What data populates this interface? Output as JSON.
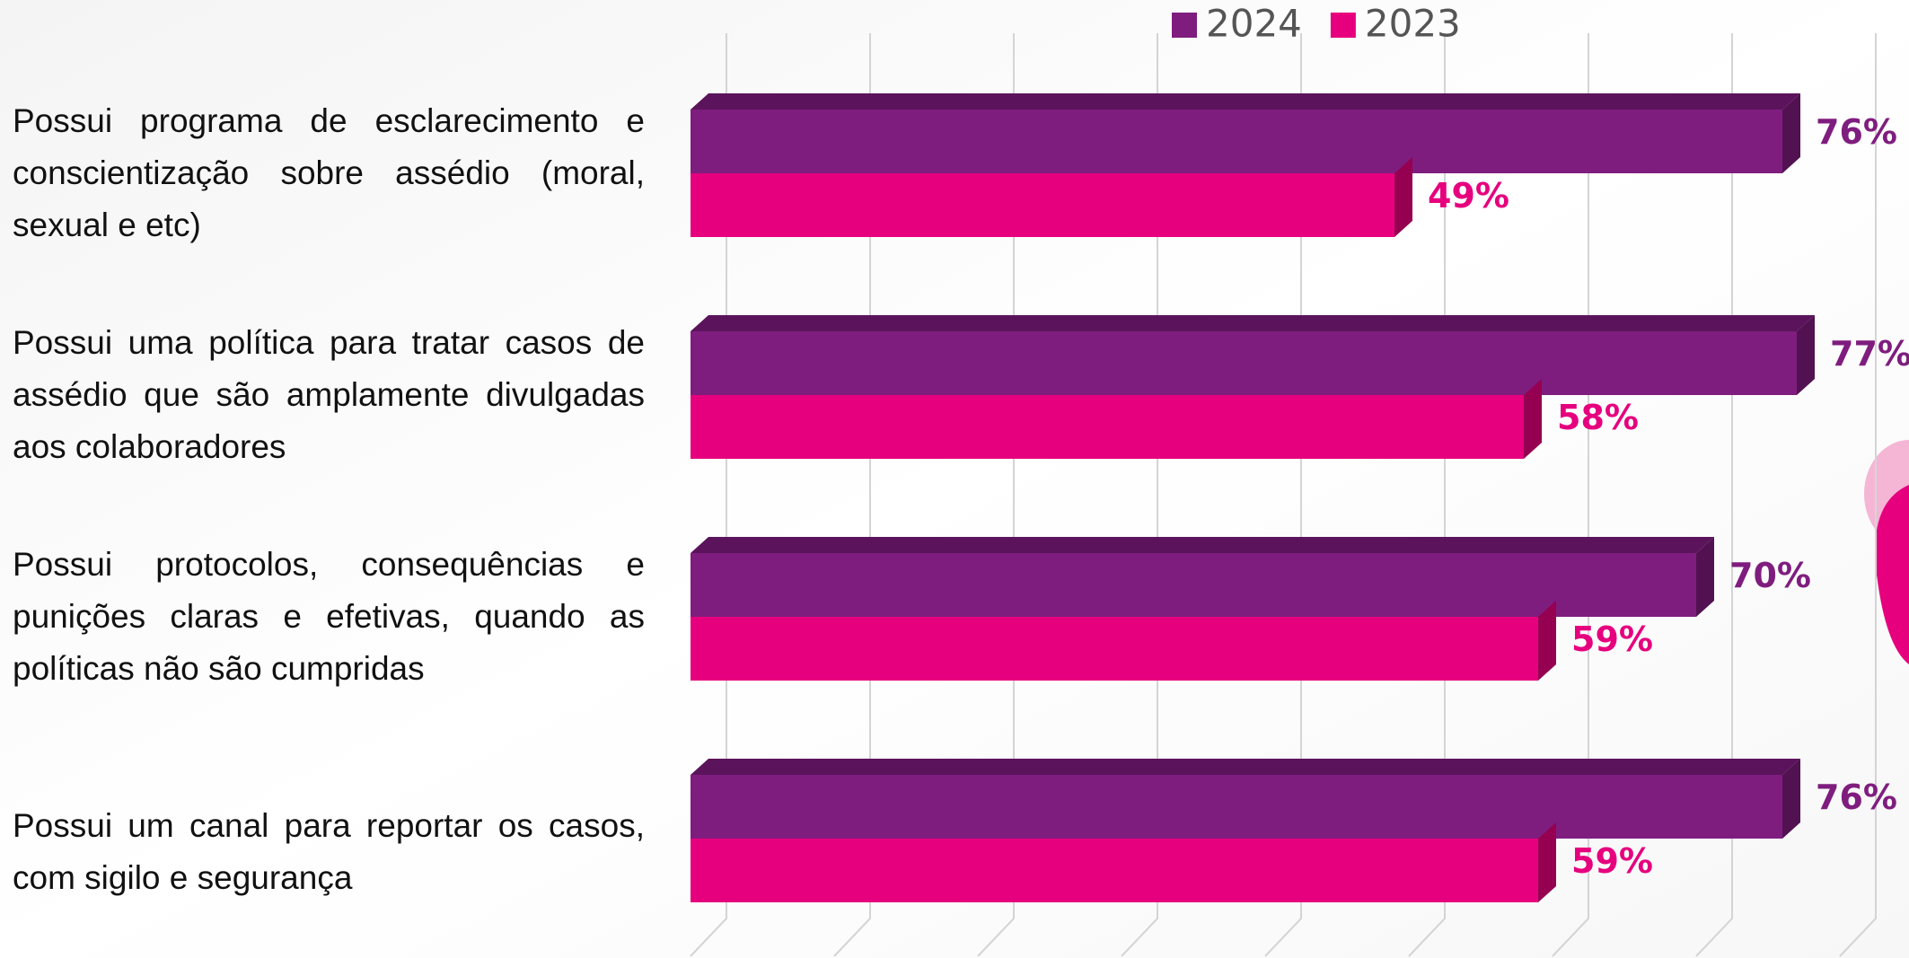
{
  "chart_data": {
    "type": "bar3d-horizontal",
    "categories": [
      "Possui programa de esclarecimento e conscientização sobre assédio (moral, sexual e etc)",
      "Possui uma política para tratar casos de assédio que são amplamente divulgadas aos colaboradores",
      "Possui protocolos, consequências e punições claras e efetivas, quando as políticas não são cumpridas",
      "Possui um canal para reportar os casos, com sigilo e segurança"
    ],
    "series": [
      {
        "name": "2024",
        "color": "#7f1d7f",
        "values": [
          76,
          77,
          70,
          76
        ],
        "value_labels": [
          "76%",
          "77%",
          "70%",
          "76%"
        ]
      },
      {
        "name": "2023",
        "color": "#e6007e",
        "values": [
          49,
          58,
          59,
          59
        ],
        "value_labels": [
          "49%",
          "58%",
          "59%",
          "59%"
        ]
      }
    ],
    "xlim": [
      0,
      80
    ],
    "xticks": [
      0,
      10,
      20,
      30,
      40,
      50,
      60,
      70,
      80
    ],
    "grid": true,
    "legend": "top"
  }
}
